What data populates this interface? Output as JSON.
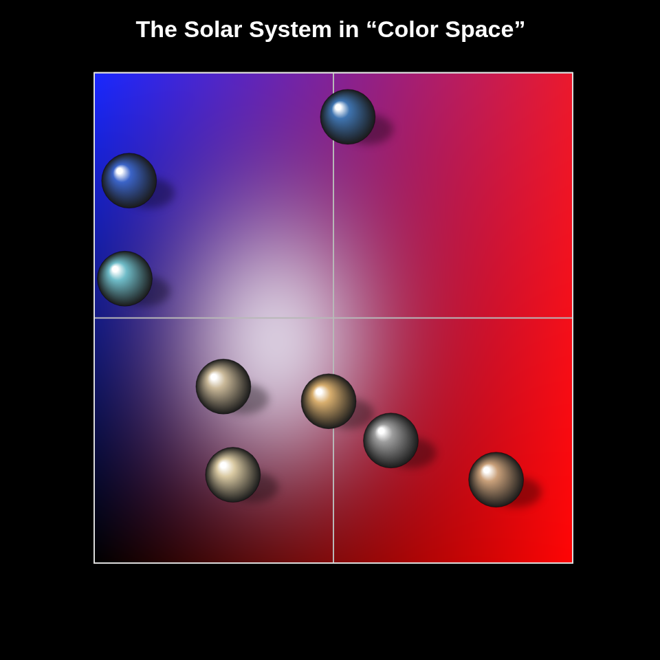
{
  "chart_data": {
    "type": "scatter",
    "title": "The Solar System in “Color Space”",
    "x": [
      0.073,
      0.064,
      0.53,
      0.27,
      0.29,
      0.49,
      0.62,
      0.84
    ],
    "values": [
      0.78,
      0.58,
      0.91,
      0.36,
      0.18,
      0.33,
      0.25,
      0.17
    ],
    "colors": [
      "#3b64c8",
      "#6fbcc8",
      "#3f74b0",
      "#c9b898",
      "#d9c9a2",
      "#d8ae6e",
      "#9c9c9c",
      "#c9a07a"
    ],
    "xlim": [
      0,
      1
    ],
    "ylim": [
      0,
      1
    ],
    "xticks": [
      0,
      0.5,
      1
    ],
    "yticks": [
      0,
      0.5,
      1
    ],
    "grid": true,
    "tick_labels": false,
    "marker": "circle"
  }
}
